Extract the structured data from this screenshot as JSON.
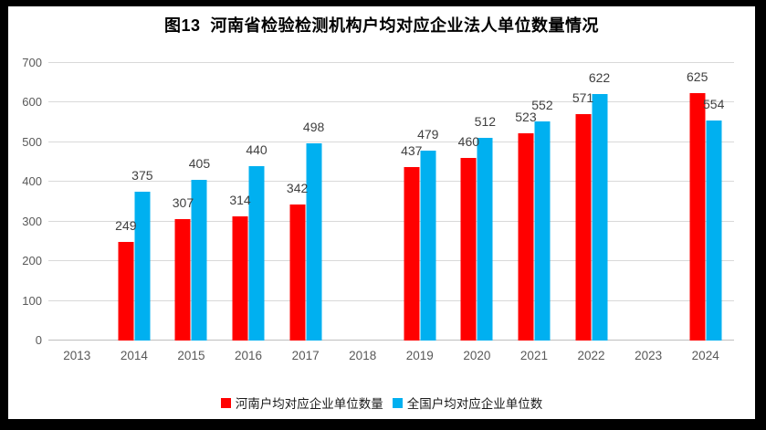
{
  "title": "图13  河南省检验检测机构户均对应企业法人单位数量情况",
  "colors": {
    "henan_series": "#FF0000",
    "national_series": "#00B0F0",
    "gridline": "#D9D9D9",
    "axis_line": "#BFBFBF",
    "tick_label": "#595959",
    "data_label": "#404040",
    "frame": "#000000",
    "background": "#FFFFFF"
  },
  "chart_data": {
    "type": "bar",
    "title": "图13  河南省检验检测机构户均对应企业法人单位数量情况",
    "categories": [
      "2013",
      "2014",
      "2015",
      "2016",
      "2017",
      "2018",
      "2019",
      "2020",
      "2021",
      "2022",
      "2023",
      "2024"
    ],
    "series": [
      {
        "name": "河南户均对应企业单位数量",
        "color_key": "henan_series",
        "values": [
          null,
          249,
          307,
          314,
          342,
          null,
          437,
          460,
          523,
          571,
          null,
          625
        ]
      },
      {
        "name": "全国户均对应企业单位数",
        "color_key": "national_series",
        "values": [
          null,
          375,
          405,
          440,
          498,
          null,
          479,
          512,
          552,
          622,
          null,
          554
        ]
      }
    ],
    "xlabel": "",
    "ylabel": "",
    "ylim": [
      0,
      700
    ],
    "ytick_step": 100,
    "grid": true,
    "data_labels": true,
    "legend_position": "bottom"
  }
}
